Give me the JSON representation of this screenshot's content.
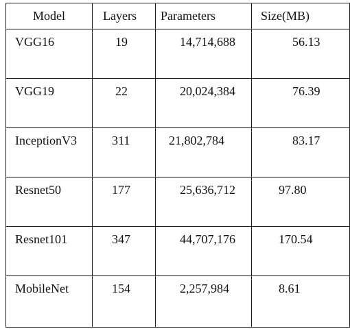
{
  "table": {
    "headers": [
      "Model",
      "Layers",
      "Parameters",
      "Size(MB)"
    ],
    "rows": [
      [
        "VGG16",
        "19",
        "14,714,688",
        "56.13"
      ],
      [
        "VGG19",
        "22",
        "20,024,384",
        "76.39"
      ],
      [
        "InceptionV3",
        "311",
        "21,802,784",
        "83.17"
      ],
      [
        "Resnet50",
        "177",
        "25,636,712",
        "97.80"
      ],
      [
        "Resnet101",
        "347",
        "44,707,176",
        "170.54"
      ],
      [
        "MobileNet",
        "154",
        "2,257,984",
        "8.61"
      ]
    ]
  }
}
